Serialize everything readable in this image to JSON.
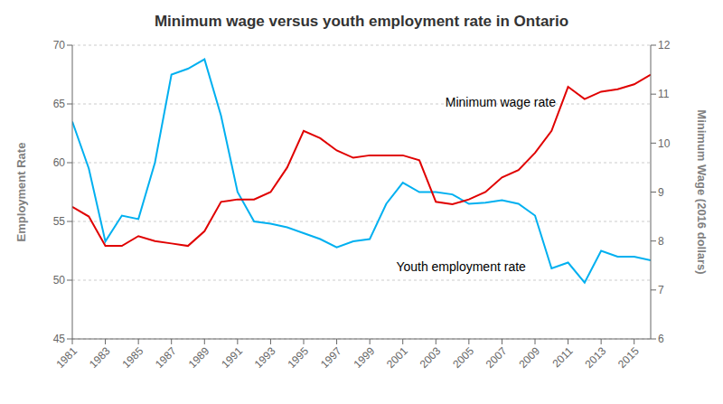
{
  "chart_data": {
    "type": "line",
    "title": "Minimum wage versus youth employment rate in Ontario",
    "ylabel": "Employment Rate",
    "y2label": "Minimum Wage (2016 dollars)",
    "x": [
      1981,
      1982,
      1983,
      1984,
      1985,
      1986,
      1987,
      1988,
      1989,
      1990,
      1991,
      1992,
      1993,
      1994,
      1995,
      1996,
      1997,
      1998,
      1999,
      2000,
      2001,
      2002,
      2003,
      2004,
      2005,
      2006,
      2007,
      2008,
      2009,
      2010,
      2011,
      2012,
      2013,
      2014,
      2015,
      2016
    ],
    "xlim": [
      1981,
      2016
    ],
    "xticks": [
      1981,
      1983,
      1985,
      1987,
      1989,
      1991,
      1993,
      1995,
      1997,
      1999,
      2001,
      2003,
      2005,
      2007,
      2009,
      2011,
      2013,
      2015
    ],
    "ylim": [
      45,
      70
    ],
    "yticks": [
      45,
      50,
      55,
      60,
      65,
      70
    ],
    "y2lim": [
      6,
      12
    ],
    "y2ticks": [
      6,
      7,
      8,
      9,
      10,
      11,
      12
    ],
    "grid": true,
    "series": [
      {
        "name": "Youth employment rate",
        "color": "#00b0f0",
        "axis": "y",
        "values": [
          63.5,
          59.5,
          53.3,
          55.5,
          55.2,
          60.0,
          67.5,
          68.0,
          68.8,
          64.0,
          57.5,
          55.0,
          54.8,
          54.5,
          54.0,
          53.5,
          52.8,
          53.3,
          53.5,
          56.5,
          58.3,
          57.5,
          57.5,
          57.3,
          56.5,
          56.6,
          56.8,
          56.5,
          55.5,
          51.0,
          51.5,
          49.8,
          52.5,
          52.0,
          52.0,
          51.7
        ]
      },
      {
        "name": "Minimum wage rate",
        "color": "#e00000",
        "axis": "y2",
        "values": [
          8.7,
          8.5,
          7.9,
          7.9,
          8.1,
          8.0,
          7.95,
          7.9,
          8.2,
          8.8,
          8.85,
          8.85,
          9.0,
          9.5,
          10.25,
          10.1,
          9.85,
          9.7,
          9.75,
          9.75,
          9.75,
          9.65,
          8.8,
          8.75,
          8.85,
          9.0,
          9.3,
          9.45,
          9.8,
          10.25,
          11.15,
          10.9,
          11.05,
          11.1,
          11.2,
          11.4
        ]
      }
    ]
  }
}
